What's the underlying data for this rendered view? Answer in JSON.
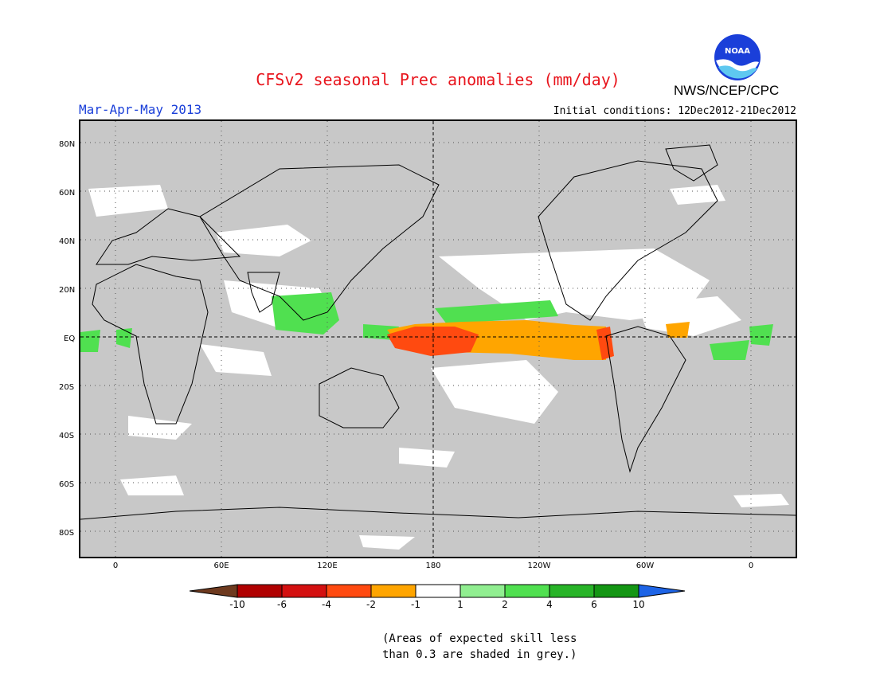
{
  "header": {
    "title": "CFSv2 seasonal Prec anomalies (mm/day)",
    "season": "Mar-Apr-May 2013",
    "initial_conditions": "Initial conditions: 12Dec2012-21Dec2012",
    "agency": "NWS/NCEP/CPC",
    "logo_text": "NOAA"
  },
  "map": {
    "lat_labels": [
      "80N",
      "60N",
      "40N",
      "20N",
      "EQ",
      "20S",
      "40S",
      "60S",
      "80S"
    ],
    "lon_labels": [
      "0",
      "60E",
      "120E",
      "180",
      "120W",
      "60W",
      "0"
    ],
    "background_color": "#c8c8c8"
  },
  "colorbar": {
    "labels": [
      "-10",
      "-6",
      "-4",
      "-2",
      "-1",
      "1",
      "2",
      "4",
      "6",
      "10"
    ],
    "colors": [
      "#6e3a1f",
      "#b00000",
      "#d41010",
      "#ff4a10",
      "#ffa500",
      "#ffffff",
      "#90ee90",
      "#50e050",
      "#28b428",
      "#149614",
      "#1e64e6"
    ]
  },
  "footer": {
    "note_line1": "(Areas of expected skill less",
    "note_line2": "than 0.3 are shaded in grey.)"
  }
}
